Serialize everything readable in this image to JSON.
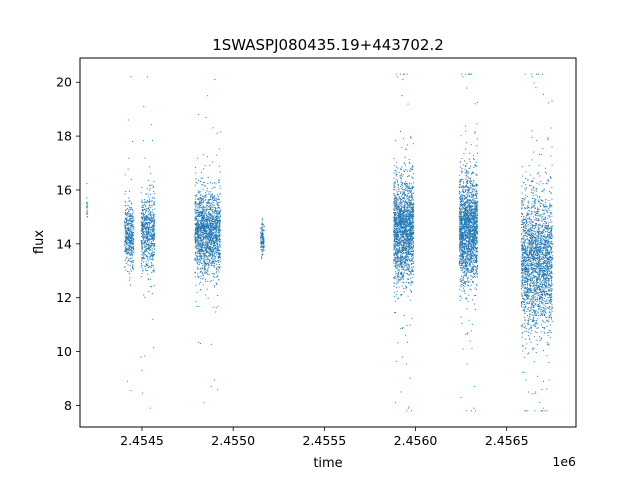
{
  "chart_data": {
    "type": "scatter",
    "title": "1SWASPJ080435.19+443702.2",
    "xlabel": "time",
    "ylabel": "flux",
    "x_offset_label": "1e6",
    "xlim": [
      2454160,
      2456880
    ],
    "ylim": [
      7.2,
      20.9
    ],
    "x_ticks": [
      2454500,
      2455000,
      2455500,
      2456000,
      2456500
    ],
    "x_tick_labels": [
      "2.4545",
      "2.4550",
      "2.4555",
      "2.4560",
      "2.4565"
    ],
    "y_ticks": [
      8,
      10,
      12,
      14,
      16,
      18,
      20
    ],
    "y_tick_labels": [
      "8",
      "10",
      "12",
      "14",
      "16",
      "18",
      "20"
    ],
    "grid": false,
    "marker_color": "#1f77b4",
    "clusters": [
      {
        "x_start": 2454195,
        "x_end": 2454202,
        "center": 15.4,
        "spread": 0.25,
        "outliers": [],
        "count": 20
      },
      {
        "x_start": 2454405,
        "x_end": 2454455,
        "center": 14.3,
        "spread": 0.55,
        "outliers": [
          [
            2454420,
            8.9
          ],
          [
            2454440,
            20.2
          ],
          [
            2454425,
            18.6
          ]
        ],
        "count": 420
      },
      {
        "x_start": 2454495,
        "x_end": 2454570,
        "center": 14.4,
        "spread": 0.7,
        "outliers": [
          [
            2454495,
            9.8
          ],
          [
            2454500,
            9.3
          ],
          [
            2454545,
            7.9
          ],
          [
            2454530,
            20.2
          ],
          [
            2454510,
            19.1
          ],
          [
            2454560,
            11.2
          ]
        ],
        "count": 650
      },
      {
        "x_start": 2454790,
        "x_end": 2454930,
        "center": 14.4,
        "spread": 0.75,
        "outliers": [
          [
            2454820,
            10.3
          ],
          [
            2454840,
            8.1
          ],
          [
            2454880,
            8.7
          ],
          [
            2454900,
            20.1
          ],
          [
            2454860,
            19.5
          ],
          [
            2454810,
            18.8
          ]
        ],
        "count": 1700
      },
      {
        "x_start": 2455150,
        "x_end": 2455170,
        "center": 14.2,
        "spread": 0.3,
        "outliers": [],
        "count": 120
      },
      {
        "x_start": 2455880,
        "x_end": 2455990,
        "center": 14.5,
        "spread": 0.9,
        "outliers": [
          [
            2455900,
            20.2
          ],
          [
            2455930,
            20.1
          ],
          [
            2455890,
            8.1
          ],
          [
            2455960,
            7.9
          ],
          [
            2455920,
            8.5
          ]
        ],
        "count": 1900
      },
      {
        "x_start": 2456240,
        "x_end": 2456340,
        "center": 14.5,
        "spread": 0.95,
        "outliers": [
          [
            2456260,
            20.2
          ],
          [
            2456300,
            20.3
          ],
          [
            2456280,
            7.8
          ],
          [
            2456320,
            7.9
          ],
          [
            2456250,
            8.3
          ]
        ],
        "count": 1900
      },
      {
        "x_start": 2456580,
        "x_end": 2456750,
        "center": 13.3,
        "spread": 1.2,
        "outliers": [
          [
            2456640,
            20.2
          ],
          [
            2456660,
            19.8
          ],
          [
            2456600,
            7.8
          ],
          [
            2456700,
            7.9
          ],
          [
            2456620,
            8.5
          ]
        ],
        "count": 2300
      }
    ]
  }
}
